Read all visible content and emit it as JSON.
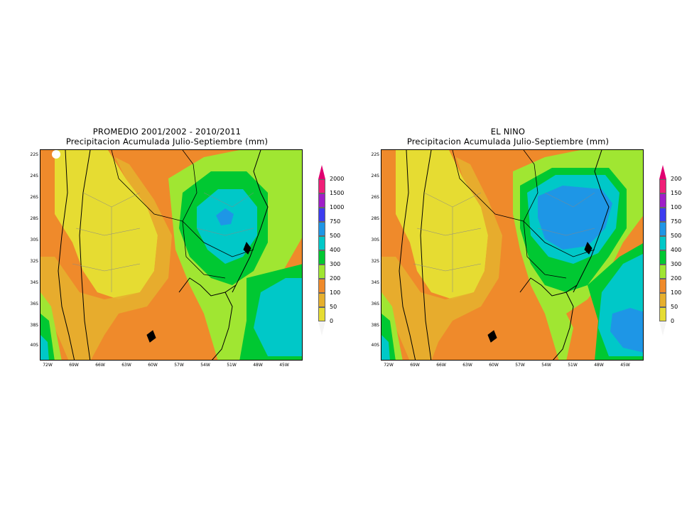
{
  "panels": [
    {
      "id": "promedio",
      "title_line1": "PROMEDIO 2001/2002 - 2010/2011",
      "title_line2": "Precipitacion Acumulada Julio-Septiembre (mm)"
    },
    {
      "id": "el-nino",
      "title_line1": "EL NINO",
      "title_line2": "Precipitacion Acumulada Julio-Septiembre (mm)"
    }
  ],
  "axes": {
    "lat_labels": [
      "22S",
      "24S",
      "26S",
      "28S",
      "30S",
      "32S",
      "34S",
      "36S",
      "38S",
      "40S"
    ],
    "lon_labels": [
      "72W",
      "69W",
      "66W",
      "63W",
      "60W",
      "57W",
      "54W",
      "51W",
      "48W",
      "45W"
    ]
  },
  "colorbar": {
    "labels": [
      "2000",
      "1500",
      "1000",
      "750",
      "500",
      "400",
      "300",
      "200",
      "100",
      "50",
      "0"
    ],
    "colors": {
      "cat_0_50": "#e6dc32",
      "cat_50_100": "#e6af2d",
      "cat_100_200": "#ef8a2b",
      "cat_200_300": "#a0e632",
      "cat_300_400": "#00c832",
      "cat_400_500": "#00c8c8",
      "cat_500_750": "#1e96e6",
      "cat_750_1000": "#3c3cf0",
      "cat_1000_1500": "#a01ec8",
      "cat_1500_2000": "#f01e78",
      "cat_above_2000": "#e00070"
    }
  }
}
